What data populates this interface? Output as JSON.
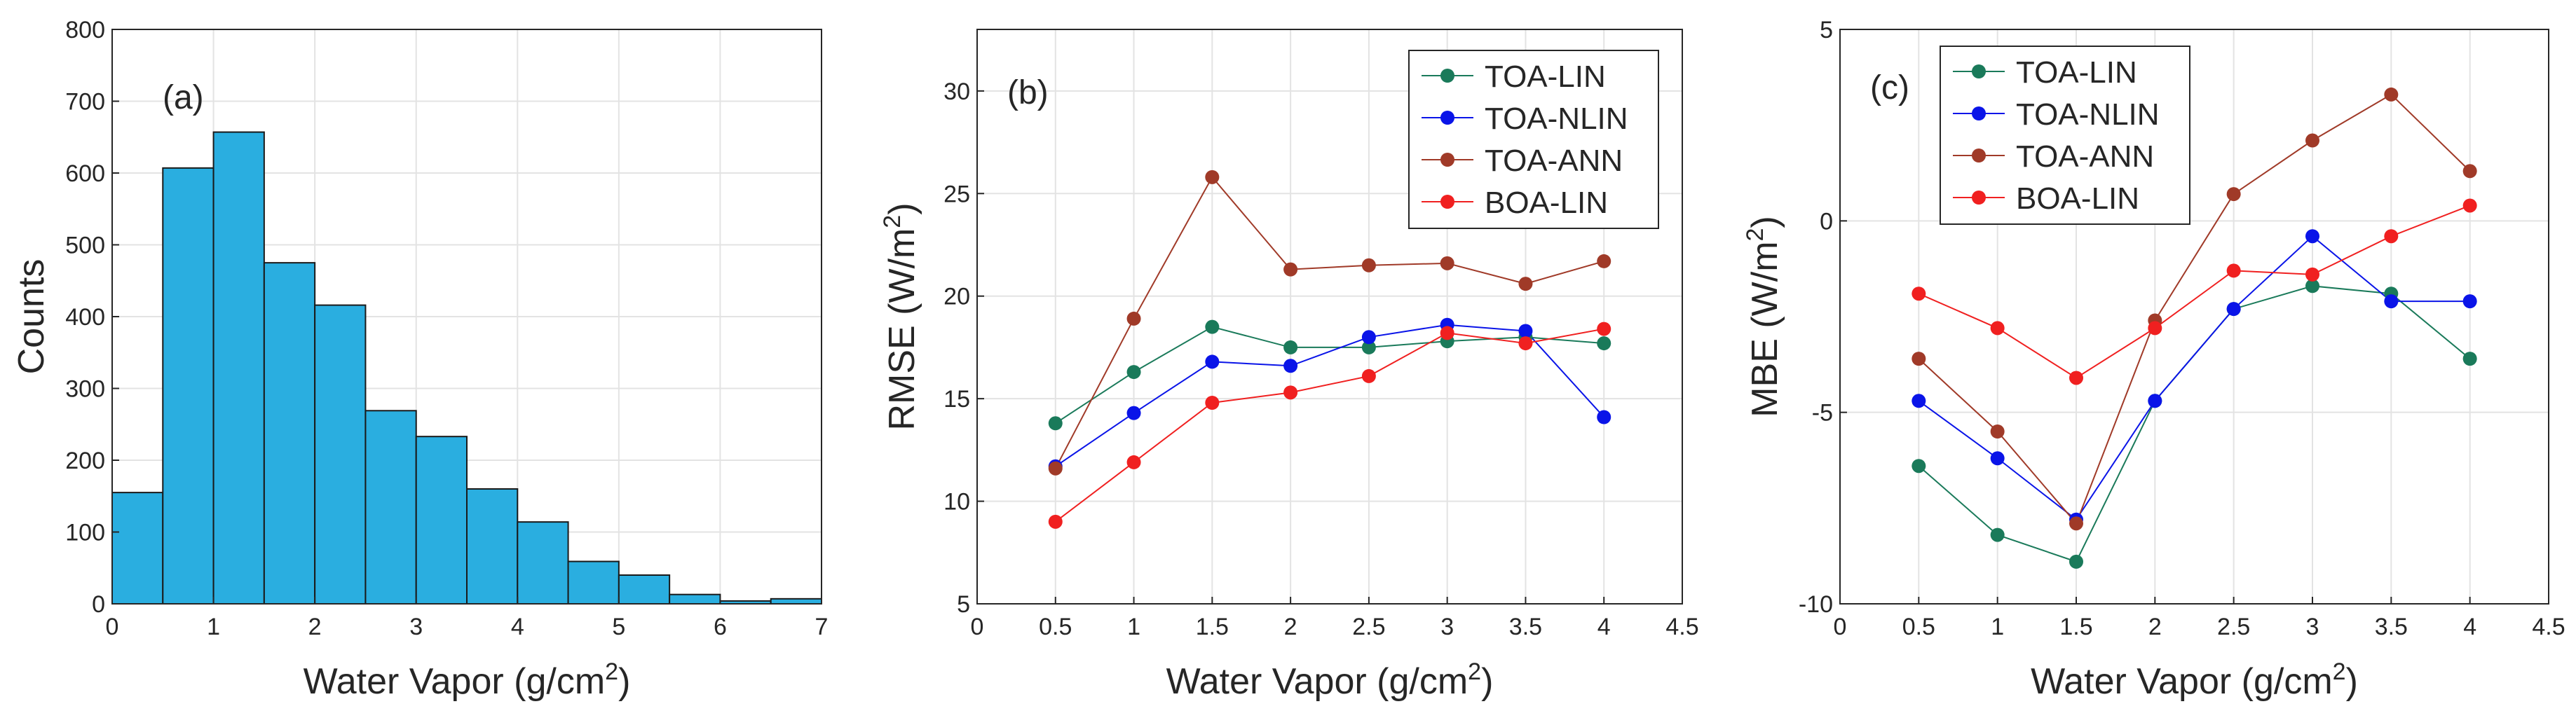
{
  "chart_data": [
    {
      "type": "bar",
      "panel_label": "(a)",
      "xlabel": "Water Vapor (g/cm",
      "xlabel_sup": "2",
      "xlabel_end": ")",
      "ylabel": "Counts",
      "xlim": [
        0,
        7
      ],
      "ylim": [
        0,
        800
      ],
      "xticks": [
        "0",
        "1",
        "2",
        "3",
        "4",
        "5",
        "6",
        "7"
      ],
      "yticks": [
        "0",
        "100",
        "200",
        "300",
        "400",
        "500",
        "600",
        "700",
        "800"
      ],
      "grid": true,
      "bar_color": "#2aaee0",
      "bin_width": 0.5,
      "bin_starts": [
        0,
        0.5,
        1.0,
        1.5,
        2.0,
        2.5,
        3.0,
        3.5,
        4.0,
        4.5,
        5.0,
        5.5,
        6.0,
        6.5
      ],
      "values": [
        155,
        607,
        657,
        475,
        416,
        269,
        233,
        160,
        114,
        59,
        40,
        13,
        4,
        7
      ]
    },
    {
      "type": "line",
      "panel_label": "(b)",
      "xlabel": "Water Vapor (g/cm",
      "xlabel_sup": "2",
      "xlabel_end": ")",
      "ylabel": "RMSE (W/m",
      "ylabel_sup": "2",
      "ylabel_end": ")",
      "xlim": [
        0,
        4.5
      ],
      "ylim": [
        5,
        33
      ],
      "xticks": [
        "0",
        "0.5",
        "1",
        "1.5",
        "2",
        "2.5",
        "3",
        "3.5",
        "4",
        "4.5"
      ],
      "yticks": [
        "5",
        "10",
        "15",
        "20",
        "25",
        "30"
      ],
      "grid": true,
      "legend_position": "top-right",
      "x": [
        0.5,
        1.0,
        1.5,
        2.0,
        2.5,
        3.0,
        3.5,
        4.0
      ],
      "series": [
        {
          "name": "TOA-LIN",
          "color": "#1a7a5a",
          "values": [
            13.8,
            16.3,
            18.5,
            17.5,
            17.5,
            17.8,
            18.0,
            17.7
          ]
        },
        {
          "name": "TOA-NLIN",
          "color": "#0a14e8",
          "values": [
            11.7,
            14.3,
            16.8,
            16.6,
            18.0,
            18.6,
            18.3,
            14.1
          ]
        },
        {
          "name": "TOA-ANN",
          "color": "#a03a28",
          "values": [
            11.6,
            18.9,
            25.8,
            21.3,
            21.5,
            21.6,
            20.6,
            21.7
          ]
        },
        {
          "name": "BOA-LIN",
          "color": "#f02020",
          "values": [
            9.0,
            11.9,
            14.8,
            15.3,
            16.1,
            18.2,
            17.7,
            18.4
          ]
        }
      ]
    },
    {
      "type": "line",
      "panel_label": "(c)",
      "xlabel": "Water Vapor (g/cm",
      "xlabel_sup": "2",
      "xlabel_end": ")",
      "ylabel": "MBE (W/m",
      "ylabel_sup": "2",
      "ylabel_end": ")",
      "xlim": [
        0,
        4.5
      ],
      "ylim": [
        -10,
        5
      ],
      "xticks": [
        "0",
        "0.5",
        "1",
        "1.5",
        "2",
        "2.5",
        "3",
        "3.5",
        "4",
        "4.5"
      ],
      "yticks": [
        "-10",
        "-5",
        "0",
        "5"
      ],
      "grid": true,
      "legend_position": "top-left",
      "x": [
        0.5,
        1.0,
        1.5,
        2.0,
        2.5,
        3.0,
        3.5,
        4.0
      ],
      "series": [
        {
          "name": "TOA-LIN",
          "color": "#1a7a5a",
          "values": [
            -6.4,
            -8.2,
            -8.9,
            -4.7,
            -2.3,
            -1.7,
            -1.9,
            -3.6
          ]
        },
        {
          "name": "TOA-NLIN",
          "color": "#0a14e8",
          "values": [
            -4.7,
            -6.2,
            -7.8,
            -4.7,
            -2.3,
            -0.4,
            -2.1,
            -2.1
          ]
        },
        {
          "name": "TOA-ANN",
          "color": "#a03a28",
          "values": [
            -3.6,
            -5.5,
            -7.9,
            -2.6,
            0.7,
            2.1,
            3.3,
            1.3
          ]
        },
        {
          "name": "BOA-LIN",
          "color": "#f02020",
          "values": [
            -1.9,
            -2.8,
            -4.1,
            -2.8,
            -1.3,
            -1.4,
            -0.4,
            0.4
          ]
        }
      ]
    }
  ]
}
